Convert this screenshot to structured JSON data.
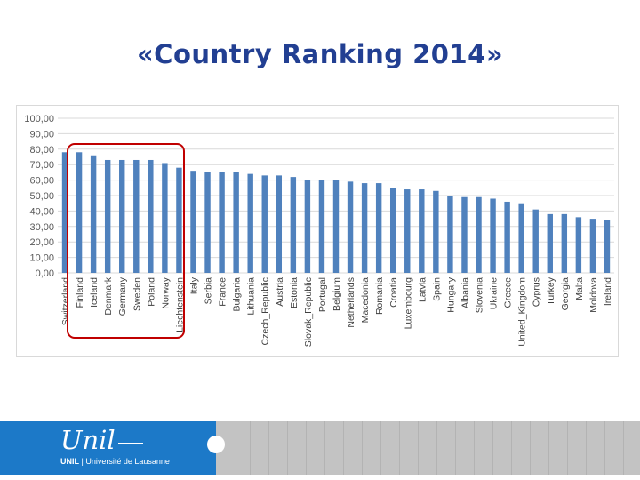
{
  "slide": {
    "title": "«Country Ranking 2014»"
  },
  "footer": {
    "logo_word": "Unil",
    "logo_subtitle_bold": "UNIL",
    "logo_subtitle": " | Université de Lausanne",
    "logo_color": "#1c79c8"
  },
  "chart_data": {
    "type": "bar",
    "categories": [
      "Switzerland",
      "Finland",
      "Iceland",
      "Denmark",
      "Germany",
      "Sweden",
      "Poland",
      "Norway",
      "Liechtenstein",
      "Italy",
      "Serbia",
      "France",
      "Bulgaria",
      "Lithuania",
      "Czech_Republic",
      "Austria",
      "Estonia",
      "Slovak_Republic",
      "Portugal",
      "Belgium",
      "Netherlands",
      "Macedonia",
      "Romania",
      "Croatia",
      "Luxembourg",
      "Latvia",
      "Spain",
      "Hungary",
      "Albania",
      "Slovenia",
      "Ukraine",
      "Greece",
      "United_Kingdom",
      "Cyprus",
      "Turkey",
      "Georgia",
      "Malta",
      "Moldova",
      "Ireland"
    ],
    "values": [
      78,
      78,
      76,
      73,
      73,
      73,
      73,
      71,
      68,
      66,
      65,
      65,
      65,
      64,
      63,
      63,
      62,
      60,
      60,
      60,
      59,
      58,
      58,
      55,
      54,
      54,
      53,
      50,
      49,
      49,
      48,
      46,
      45,
      41,
      38,
      38,
      36,
      35,
      34
    ],
    "ylim": [
      0,
      100
    ],
    "y_ticks": [
      "0,00",
      "10,00",
      "20,00",
      "30,00",
      "40,00",
      "50,00",
      "60,00",
      "70,00",
      "80,00",
      "90,00",
      "100,00"
    ],
    "bar_color": "#4f81bd",
    "grid": true,
    "highlighted_categories": [
      "Switzerland",
      "Finland",
      "Iceland",
      "Denmark",
      "Germany",
      "Sweden",
      "Poland",
      "Norway"
    ],
    "highlight_color": "#c00000"
  }
}
